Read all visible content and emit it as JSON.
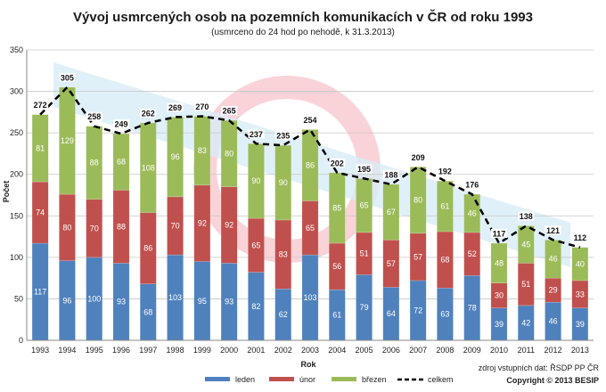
{
  "chart_data": {
    "type": "bar",
    "stacked": true,
    "title": "Vývoj usmrcených osob na pozemních komunikacích v ČR od roku 1993",
    "subtitle": "(usmrceno do 24 hod po nehodě,  k 31.3.2013)",
    "xlabel": "Rok",
    "ylabel": "Počet",
    "ylim": [
      0,
      350
    ],
    "yticks": [
      0,
      50,
      100,
      150,
      200,
      250,
      300,
      350
    ],
    "grid": true,
    "legend_position": "bottom",
    "categories": [
      "1993",
      "1994",
      "1995",
      "1996",
      "1997",
      "1998",
      "1999",
      "2000",
      "2001",
      "2002",
      "2003",
      "2004",
      "2005",
      "2006",
      "2007",
      "2008",
      "2009",
      "2010",
      "2011",
      "2012",
      "2013"
    ],
    "series": [
      {
        "name": "leden",
        "color": "#4f81bd",
        "values": [
          117,
          96,
          100,
          93,
          68,
          103,
          95,
          93,
          82,
          62,
          103,
          61,
          79,
          64,
          72,
          63,
          78,
          39,
          42,
          46,
          39
        ]
      },
      {
        "name": "únor",
        "color": "#c0504d",
        "values": [
          74,
          80,
          70,
          88,
          86,
          70,
          92,
          92,
          65,
          83,
          65,
          56,
          51,
          57,
          57,
          68,
          52,
          30,
          51,
          29,
          33
        ]
      },
      {
        "name": "březen",
        "color": "#9bbb59",
        "values": [
          81,
          129,
          88,
          68,
          108,
          96,
          83,
          80,
          90,
          90,
          86,
          85,
          65,
          67,
          80,
          61,
          46,
          48,
          45,
          46,
          40
        ]
      }
    ],
    "total_series": {
      "name": "celkem",
      "style": "dashed-line",
      "color": "#000000",
      "values": [
        272,
        305,
        258,
        249,
        262,
        269,
        270,
        265,
        237,
        235,
        254,
        202,
        195,
        188,
        209,
        192,
        176,
        117,
        138,
        121,
        112
      ]
    }
  },
  "footer": {
    "source": "zdroj vstupních dat: ŘSDP PP ČR",
    "copyright": "Copyright © 2013 BESIP"
  }
}
